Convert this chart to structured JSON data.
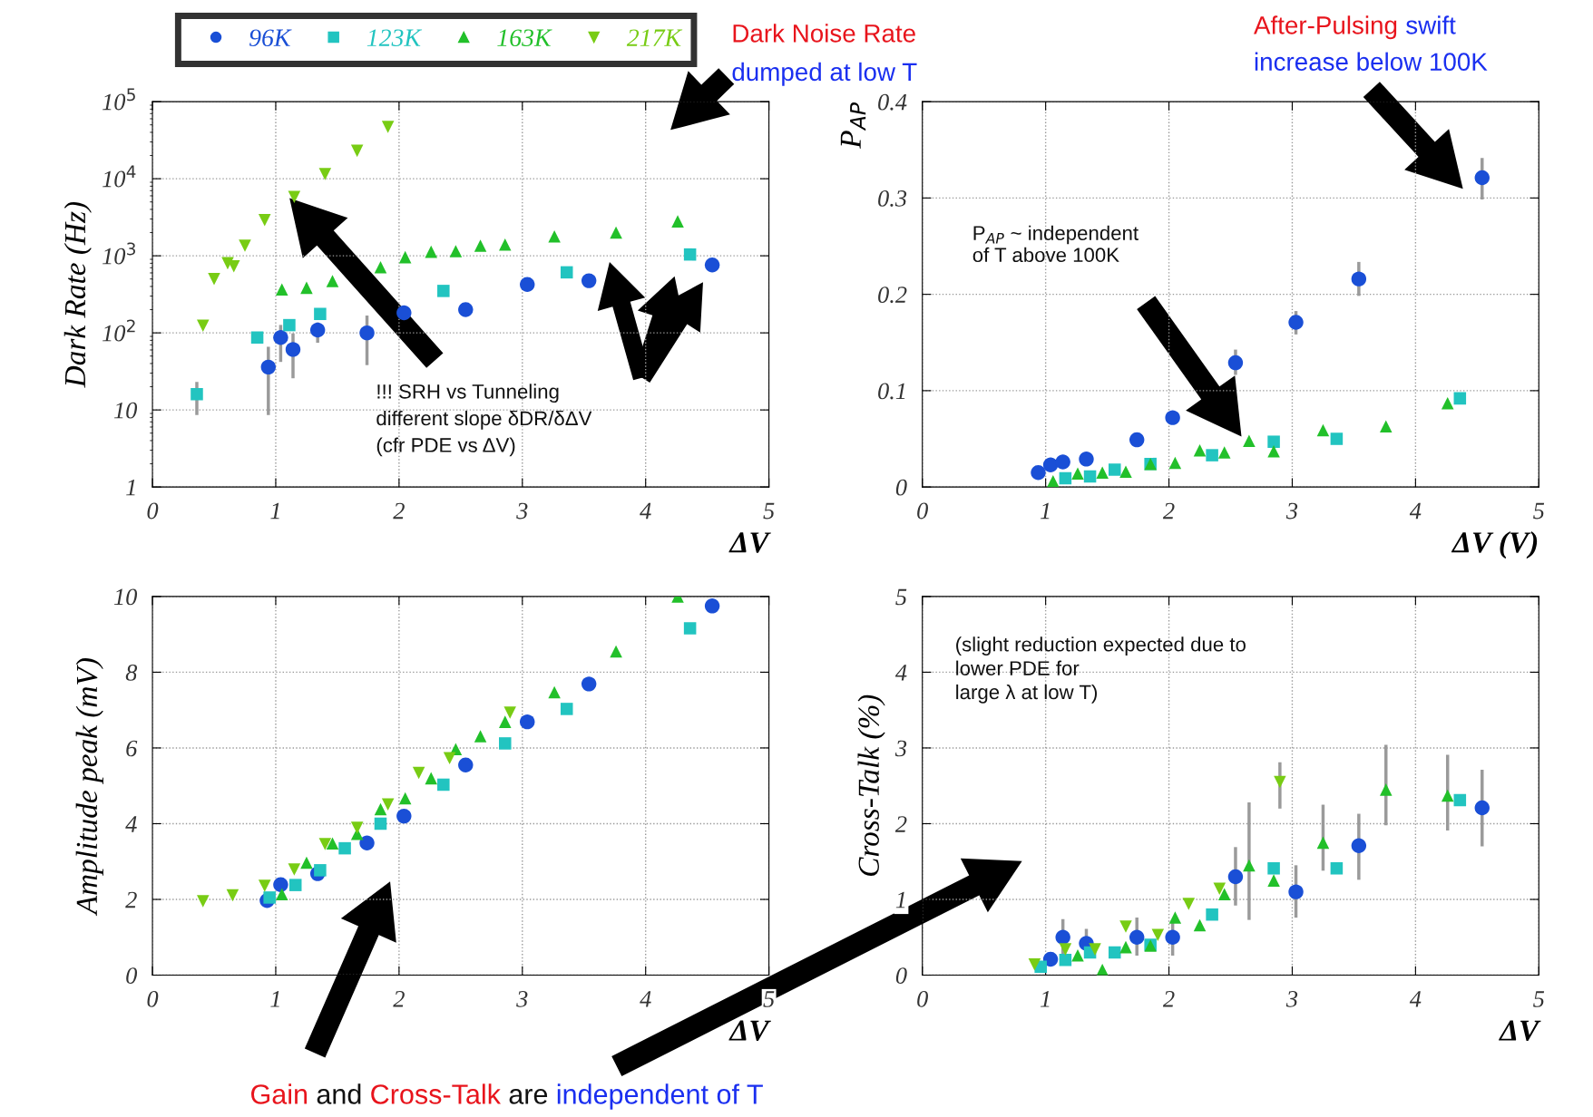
{
  "chart_data": [
    {
      "type": "scatter",
      "xlabel": "ΔV",
      "ylabel": "Dark Rate (Hz)",
      "xlim": [
        0,
        5
      ],
      "ylim": [
        1,
        100000
      ],
      "xticks": [
        0,
        1,
        2,
        3,
        4,
        5
      ],
      "yticks": [
        1,
        10,
        {
          "value": 100,
          "label": "10$^{2}$"
        },
        {
          "value": 1000,
          "label": "10$^{3}$"
        },
        {
          "value": 10000,
          "label": "10$^{4}$"
        },
        {
          "value": 100000,
          "label": "10$^{5}$"
        }
      ],
      "log": "y",
      "grid": true,
      "legend": "top",
      "series": [
        {
          "name": "96K",
          "color": "#1a4fd6",
          "marker": "circle",
          "x": [
            0.94,
            1.04,
            1.14,
            1.34,
            1.74,
            2.04,
            2.54,
            3.04,
            3.54,
            4.54
          ],
          "values": [
            36,
            87,
            61,
            109,
            100,
            182,
            200,
            425,
            475,
            760
          ],
          "errors": [
            [
              9,
              63
            ],
            [
              44,
              121
            ],
            [
              27,
              94
            ],
            [
              78,
              130
            ],
            [
              40,
              160
            ],
            null,
            null,
            null,
            null,
            null
          ]
        },
        {
          "name": "123K",
          "color": "#22c4c0",
          "marker": "square",
          "x": [
            0.36,
            0.85,
            1.11,
            1.36,
            2.36,
            3.36,
            4.36
          ],
          "values": [
            16,
            87,
            126,
            176,
            350,
            610,
            1040
          ],
          "errors": [
            [
              9,
              22
            ],
            null,
            null,
            null,
            null,
            null,
            null
          ]
        },
        {
          "name": "163K",
          "color": "#22c02a",
          "marker": "triangle",
          "x": [
            1.05,
            1.25,
            1.46,
            1.85,
            2.05,
            2.26,
            2.46,
            2.66,
            2.86,
            3.26,
            3.76,
            4.26
          ],
          "values": [
            365,
            385,
            470,
            710,
            960,
            1130,
            1150,
            1350,
            1400,
            1780,
            2000,
            2800
          ]
        },
        {
          "name": "217K",
          "color": "#78cc14",
          "marker": "triangle_down",
          "x": [
            0.41,
            0.5,
            0.61,
            0.66,
            0.75,
            0.91,
            1.15,
            1.4,
            1.66,
            1.91
          ],
          "values": [
            124,
            500,
            800,
            730,
            1350,
            2900,
            5800,
            11500,
            23000,
            47000
          ]
        }
      ],
      "annotations": [
        "Dark Noise Rate",
        "dumped at low T",
        "!!! SRH vs Tunneling\ndifferent slope δDR/δΔV\n(cfr PDE vs ΔV)"
      ]
    },
    {
      "type": "scatter",
      "xlabel": "ΔV (V)",
      "ylabel": "P$_{AP}$",
      "xlim": [
        0,
        5
      ],
      "ylim": [
        0,
        0.4
      ],
      "xticks": [
        0,
        1,
        2,
        3,
        4,
        5
      ],
      "yticks": [
        0,
        0.1,
        0.2,
        0.3,
        0.4
      ],
      "grid": true,
      "legend": false,
      "series": [
        {
          "color": "#1a4fd6",
          "marker": "circle",
          "x": [
            0.94,
            1.04,
            1.14,
            1.33,
            1.74,
            2.03,
            2.54,
            3.03,
            3.54,
            4.54
          ],
          "values": [
            0.015,
            0.023,
            0.026,
            0.029,
            0.049,
            0.072,
            0.129,
            0.171,
            0.216,
            0.321
          ],
          "errors": [
            null,
            null,
            null,
            null,
            null,
            null,
            [
              0.118,
              0.141
            ],
            [
              0.16,
              0.181
            ],
            [
              0.2,
              0.232
            ],
            [
              0.3,
              0.34
            ]
          ]
        },
        {
          "color": "#22c4c0",
          "marker": "square",
          "x": [
            1.16,
            1.36,
            1.56,
            1.85,
            2.35,
            2.85,
            3.36,
            4.36
          ],
          "values": [
            0.009,
            0.011,
            0.018,
            0.024,
            0.033,
            0.047,
            0.05,
            0.092
          ]
        },
        {
          "color": "#22c02a",
          "marker": "triangle",
          "x": [
            1.06,
            1.26,
            1.46,
            1.65,
            1.85,
            2.05,
            2.25,
            2.45,
            2.65,
            2.85,
            3.25,
            3.76,
            4.26
          ],
          "values": [
            0.006,
            0.014,
            0.015,
            0.016,
            0.024,
            0.025,
            0.038,
            0.036,
            0.048,
            0.037,
            0.059,
            0.063,
            0.087
          ]
        }
      ],
      "annotations": [
        "After-Pulsing",
        "swift",
        "increase below 100K",
        "P$_{AP}$ ~ independent\nof T above 100K"
      ]
    },
    {
      "type": "scatter",
      "xlabel": "ΔV",
      "ylabel": "Amplitude peak (mV)",
      "xlim": [
        0,
        5
      ],
      "ylim": [
        0,
        10
      ],
      "xticks": [
        0,
        1,
        2,
        3,
        4,
        5
      ],
      "yticks": [
        0,
        2,
        4,
        6,
        8,
        10
      ],
      "grid": true,
      "legend": false,
      "series": [
        {
          "color": "#1a4fd6",
          "marker": "circle",
          "x": [
            0.93,
            1.04,
            1.34,
            1.74,
            2.04,
            2.54,
            3.04,
            3.54,
            4.54
          ],
          "values": [
            1.97,
            2.39,
            2.68,
            3.49,
            4.2,
            5.55,
            6.69,
            7.69,
            9.75
          ]
        },
        {
          "color": "#22c4c0",
          "marker": "square",
          "x": [
            0.95,
            1.16,
            1.36,
            1.56,
            1.85,
            2.36,
            2.86,
            3.36,
            4.36
          ],
          "values": [
            2.05,
            2.38,
            2.77,
            3.35,
            4.0,
            5.03,
            6.12,
            7.03,
            9.16
          ]
        },
        {
          "color": "#22c02a",
          "marker": "triangle",
          "x": [
            1.05,
            1.25,
            1.46,
            1.66,
            1.85,
            2.05,
            2.26,
            2.46,
            2.66,
            2.86,
            3.26,
            3.76,
            4.26
          ],
          "values": [
            2.14,
            2.97,
            3.48,
            3.73,
            4.38,
            4.67,
            5.2,
            5.97,
            6.31,
            6.69,
            7.47,
            8.55,
            10.0
          ]
        },
        {
          "color": "#78cc14",
          "marker": "triangle_down",
          "x": [
            0.41,
            0.65,
            0.91,
            1.15,
            1.4,
            1.66,
            1.91,
            2.16,
            2.41,
            2.9
          ],
          "values": [
            1.95,
            2.11,
            2.36,
            2.79,
            3.46,
            3.89,
            4.51,
            5.34,
            5.73,
            6.93
          ]
        }
      ],
      "annotations": [
        "Gain",
        "and",
        "Cross-Talk",
        "are",
        "independent of T"
      ]
    },
    {
      "type": "scatter",
      "xlabel": "ΔV",
      "ylabel": "Cross-Talk (%)",
      "xlim": [
        0,
        5
      ],
      "ylim": [
        0,
        5
      ],
      "xticks": [
        0,
        1,
        2,
        3,
        4,
        5
      ],
      "yticks": [
        0,
        1,
        2,
        3,
        4,
        5
      ],
      "grid": true,
      "legend": false,
      "series": [
        {
          "color": "#1a4fd6",
          "marker": "circle",
          "x": [
            1.04,
            1.14,
            1.33,
            1.74,
            2.03,
            2.54,
            3.03,
            3.54,
            4.54
          ],
          "values": [
            0.21,
            0.5,
            0.42,
            0.5,
            0.5,
            1.3,
            1.1,
            1.71,
            2.21
          ],
          "errors": [
            null,
            [
              0.3,
              0.72
            ],
            [
              0.28,
              0.59
            ],
            [
              0.28,
              0.74
            ],
            [
              0.28,
              0.68
            ],
            [
              0.94,
              1.67
            ],
            [
              0.78,
              1.43
            ],
            [
              1.28,
              2.11
            ],
            [
              1.72,
              2.69
            ]
          ]
        },
        {
          "color": "#22c4c0",
          "marker": "square",
          "x": [
            0.96,
            1.16,
            1.36,
            1.56,
            1.85,
            2.35,
            2.85,
            3.36,
            4.36
          ],
          "values": [
            0.11,
            0.2,
            0.3,
            0.3,
            0.4,
            0.8,
            1.41,
            1.41,
            2.31
          ]
        },
        {
          "color": "#22c02a",
          "marker": "triangle",
          "x": [
            1.26,
            1.46,
            1.65,
            1.85,
            2.05,
            2.25,
            2.45,
            2.65,
            2.85,
            3.25,
            3.76,
            4.26
          ],
          "values": [
            0.26,
            0.07,
            0.37,
            0.39,
            0.76,
            0.66,
            1.07,
            1.45,
            1.25,
            1.75,
            2.45,
            2.37
          ],
          "errors": [
            null,
            null,
            null,
            null,
            null,
            null,
            null,
            [
              0.75,
              2.26
            ],
            null,
            [
              1.4,
              2.23
            ],
            [
              2.0,
              3.02
            ],
            [
              1.93,
              2.89
            ]
          ]
        },
        {
          "color": "#78cc14",
          "marker": "triangle_down",
          "x": [
            0.91,
            1.16,
            1.4,
            1.65,
            1.91,
            2.16,
            2.41,
            2.9
          ],
          "values": [
            0.14,
            0.34,
            0.34,
            0.64,
            0.53,
            0.94,
            1.14,
            2.55
          ],
          "errors": [
            null,
            null,
            null,
            null,
            null,
            null,
            null,
            [
              2.22,
              2.79
            ]
          ]
        }
      ],
      "annotations": [
        "(slight reduction expected due to\nlower PDE for\nlarge λ at low T)"
      ]
    }
  ]
}
